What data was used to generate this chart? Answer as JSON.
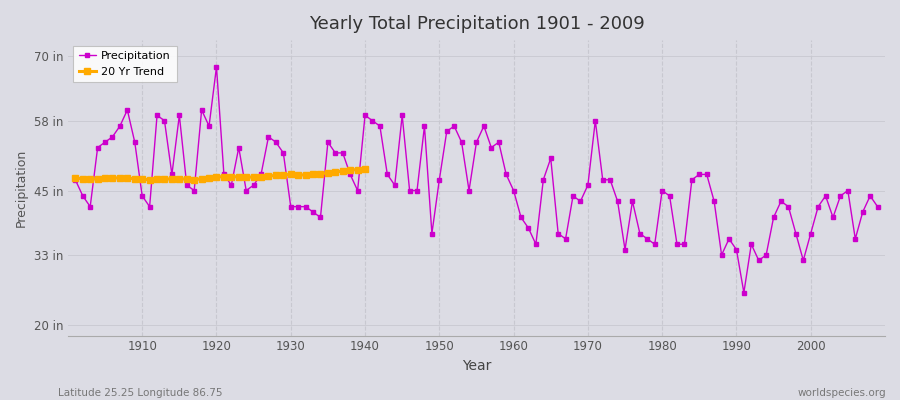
{
  "title": "Yearly Total Precipitation 1901 - 2009",
  "xlabel": "Year",
  "ylabel": "Precipitation",
  "background_color": "#dcdce4",
  "plot_bg_color": "#dcdce4",
  "precip_color": "#cc00cc",
  "trend_color": "#ffaa00",
  "ytick_labels": [
    "20 in",
    "33 in",
    "45 in",
    "58 in",
    "70 in"
  ],
  "ytick_values": [
    20,
    33,
    45,
    58,
    70
  ],
  "ylim": [
    18,
    73
  ],
  "xlim": [
    1900,
    2010
  ],
  "years": [
    1901,
    1902,
    1903,
    1904,
    1905,
    1906,
    1907,
    1908,
    1909,
    1910,
    1911,
    1912,
    1913,
    1914,
    1915,
    1916,
    1917,
    1918,
    1919,
    1920,
    1921,
    1922,
    1923,
    1924,
    1925,
    1926,
    1927,
    1928,
    1929,
    1930,
    1931,
    1932,
    1933,
    1934,
    1935,
    1936,
    1937,
    1938,
    1939,
    1940,
    1941,
    1942,
    1943,
    1944,
    1945,
    1946,
    1947,
    1948,
    1949,
    1950,
    1951,
    1952,
    1953,
    1954,
    1955,
    1956,
    1957,
    1958,
    1959,
    1960,
    1961,
    1962,
    1963,
    1964,
    1965,
    1966,
    1967,
    1968,
    1969,
    1970,
    1971,
    1972,
    1973,
    1974,
    1975,
    1976,
    1977,
    1978,
    1979,
    1980,
    1981,
    1982,
    1983,
    1984,
    1985,
    1986,
    1987,
    1988,
    1989,
    1990,
    1991,
    1992,
    1993,
    1994,
    1995,
    1996,
    1997,
    1998,
    1999,
    2000,
    2001,
    2002,
    2003,
    2004,
    2005,
    2006,
    2007,
    2008,
    2009
  ],
  "precip": [
    47,
    44,
    42,
    53,
    54,
    55,
    57,
    60,
    54,
    44,
    42,
    59,
    58,
    48,
    59,
    46,
    45,
    60,
    57,
    68,
    48,
    46,
    53,
    45,
    46,
    48,
    55,
    54,
    52,
    42,
    42,
    42,
    41,
    40,
    54,
    52,
    52,
    48,
    45,
    59,
    58,
    57,
    48,
    46,
    59,
    45,
    45,
    57,
    37,
    47,
    56,
    57,
    54,
    45,
    54,
    57,
    53,
    54,
    48,
    45,
    40,
    38,
    35,
    47,
    51,
    37,
    36,
    44,
    43,
    46,
    58,
    47,
    47,
    43,
    34,
    43,
    37,
    36,
    35,
    45,
    44,
    35,
    35,
    47,
    48,
    48,
    43,
    33,
    36,
    34,
    26,
    35,
    32,
    33,
    40,
    43,
    42,
    37,
    32,
    37,
    42,
    44,
    40,
    44,
    45,
    36,
    41,
    44,
    42
  ],
  "trend_years": [
    1901,
    1902,
    1903,
    1904,
    1905,
    1906,
    1907,
    1908,
    1909,
    1910,
    1911,
    1912,
    1913,
    1914,
    1915,
    1916,
    1917,
    1918,
    1919,
    1920,
    1921,
    1922,
    1923,
    1924,
    1925,
    1926,
    1927,
    1928,
    1929,
    1930,
    1931,
    1932,
    1933,
    1934,
    1935,
    1936,
    1937,
    1938,
    1939,
    1940
  ],
  "trend_values": [
    47.3,
    47.2,
    47.1,
    47.2,
    47.3,
    47.4,
    47.3,
    47.3,
    47.2,
    47.1,
    47.0,
    47.1,
    47.2,
    47.1,
    47.2,
    47.1,
    47.0,
    47.2,
    47.3,
    47.5,
    47.6,
    47.5,
    47.6,
    47.5,
    47.5,
    47.6,
    47.7,
    47.8,
    47.9,
    48.0,
    47.9,
    47.9,
    48.0,
    48.1,
    48.3,
    48.5,
    48.6,
    48.8,
    48.9,
    49.1
  ],
  "footer_left": "Latitude 25.25 Longitude 86.75",
  "footer_right": "worldspecies.org",
  "grid_color": "#c8c8d0",
  "grid_color_h": "#c8c8d0"
}
